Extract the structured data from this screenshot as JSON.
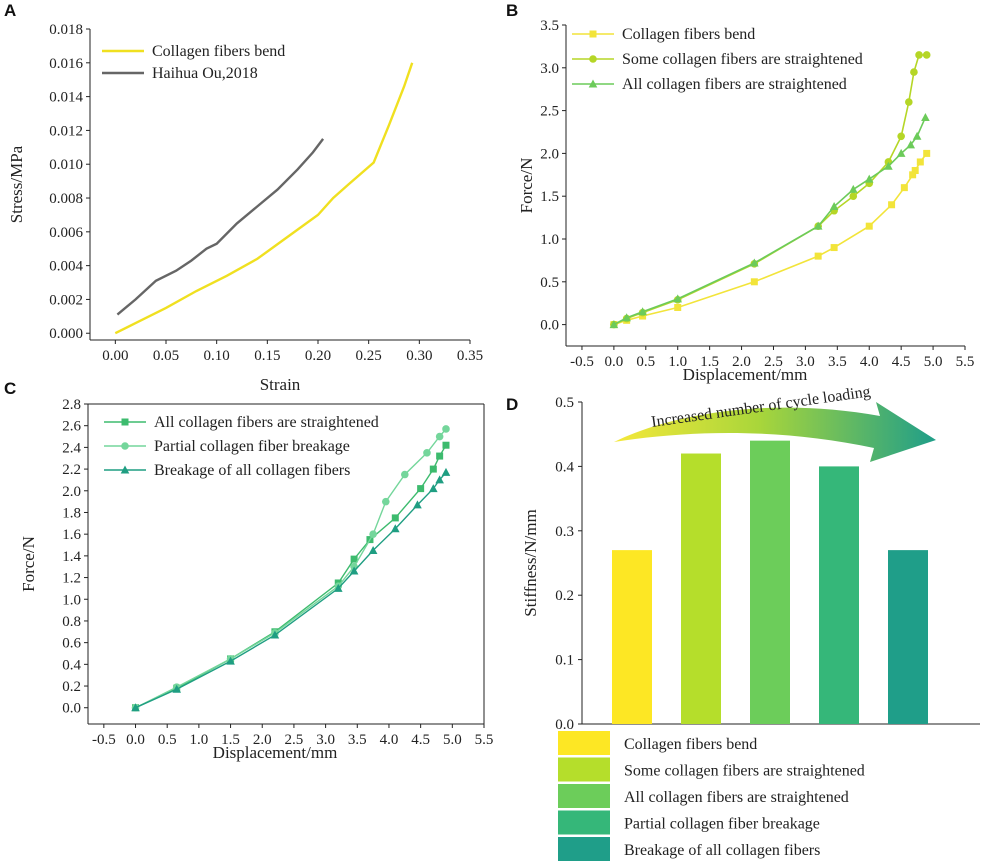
{
  "chart_data": [
    {
      "panel": "A",
      "type": "line",
      "xlabel": "Strain",
      "ylabel": "Stress/MPa",
      "xlim": [
        -0.025,
        0.35
      ],
      "ylim": [
        -0.0004,
        0.018
      ],
      "xticks": [
        "0.00",
        "0.05",
        "0.10",
        "0.15",
        "0.20",
        "0.25",
        "0.30",
        "0.35"
      ],
      "yticks": [
        "0.000",
        "0.002",
        "0.004",
        "0.006",
        "0.008",
        "0.010",
        "0.012",
        "0.014",
        "0.016",
        "0.018"
      ],
      "legend_position": "top-left",
      "series": [
        {
          "name": "Collagen fibers bend",
          "color": "#f0e020",
          "marker": "none",
          "x": [
            0,
            0.02,
            0.05,
            0.08,
            0.11,
            0.14,
            0.17,
            0.2,
            0.215,
            0.23,
            0.255,
            0.27,
            0.285,
            0.293
          ],
          "y": [
            0,
            0.0006,
            0.0015,
            0.0025,
            0.0034,
            0.0044,
            0.0057,
            0.007,
            0.008,
            0.0088,
            0.0101,
            0.0123,
            0.0146,
            0.016
          ]
        },
        {
          "name": "Haihua Ou,2018",
          "color": "#666666",
          "marker": "none",
          "x": [
            0.002,
            0.02,
            0.04,
            0.06,
            0.075,
            0.09,
            0.1,
            0.12,
            0.14,
            0.16,
            0.18,
            0.195,
            0.205
          ],
          "y": [
            0.0011,
            0.002,
            0.0031,
            0.0037,
            0.0043,
            0.005,
            0.0053,
            0.0065,
            0.0075,
            0.0085,
            0.0097,
            0.0107,
            0.0115
          ]
        }
      ]
    },
    {
      "panel": "B",
      "type": "line",
      "xlabel": "Displacement/mm",
      "ylabel": "Force/N",
      "xlim": [
        -0.75,
        5.5
      ],
      "ylim": [
        -0.25,
        3.5
      ],
      "xticks": [
        "-0.5",
        "0.0",
        "0.5",
        "1.0",
        "1.5",
        "2.0",
        "2.5",
        "3.0",
        "3.5",
        "4.0",
        "4.5",
        "5.0",
        "5.5"
      ],
      "yticks": [
        "0.0",
        "0.5",
        "1.0",
        "1.5",
        "2.0",
        "2.5",
        "3.0",
        "3.5"
      ],
      "legend_position": "top-left",
      "series": [
        {
          "name": "Collagen fibers bend",
          "color": "#f2e43a",
          "marker": "square",
          "x": [
            0,
            0.2,
            0.45,
            1.0,
            2.2,
            3.2,
            3.45,
            4.0,
            4.35,
            4.55,
            4.68,
            4.72,
            4.8,
            4.9
          ],
          "y": [
            0,
            0.05,
            0.1,
            0.2,
            0.5,
            0.8,
            0.9,
            1.15,
            1.4,
            1.6,
            1.75,
            1.8,
            1.9,
            2.0
          ]
        },
        {
          "name": "Some collagen fibers are straightened",
          "color": "#b5d626",
          "marker": "circle",
          "x": [
            0,
            0.2,
            0.45,
            1.0,
            2.2,
            3.2,
            3.45,
            3.75,
            4.0,
            4.3,
            4.5,
            4.62,
            4.7,
            4.78,
            4.9
          ],
          "y": [
            0,
            0.07,
            0.14,
            0.29,
            0.71,
            1.15,
            1.33,
            1.5,
            1.65,
            1.9,
            2.2,
            2.6,
            2.95,
            3.15,
            3.15
          ]
        },
        {
          "name": "All collagen fibers are straightened",
          "color": "#6ccb5a",
          "marker": "triangle",
          "x": [
            0,
            0.2,
            0.45,
            1.0,
            2.2,
            3.2,
            3.45,
            3.75,
            4.0,
            4.3,
            4.5,
            4.65,
            4.75,
            4.88
          ],
          "y": [
            0,
            0.08,
            0.15,
            0.3,
            0.72,
            1.15,
            1.38,
            1.58,
            1.7,
            1.85,
            2.0,
            2.1,
            2.2,
            2.42
          ]
        }
      ]
    },
    {
      "panel": "C",
      "type": "line",
      "xlabel": "Displacement/mm",
      "ylabel": "Force/N",
      "xlim": [
        -0.75,
        5.5
      ],
      "ylim": [
        -0.15,
        2.8
      ],
      "xticks": [
        "-0.5",
        "0.0",
        "0.5",
        "1.0",
        "1.5",
        "2.0",
        "2.5",
        "3.0",
        "3.5",
        "4.0",
        "4.5",
        "5.0",
        "5.5"
      ],
      "yticks": [
        "0.0",
        "0.2",
        "0.4",
        "0.6",
        "0.8",
        "1.0",
        "1.2",
        "1.4",
        "1.6",
        "1.8",
        "2.0",
        "2.2",
        "2.4",
        "2.6",
        "2.8"
      ],
      "legend_position": "top-left",
      "series": [
        {
          "name": "All collagen fibers are straightened",
          "color": "#3dbb6e",
          "marker": "square",
          "x": [
            0,
            0.65,
            1.5,
            2.2,
            3.2,
            3.45,
            3.7,
            4.1,
            4.5,
            4.7,
            4.8,
            4.9
          ],
          "y": [
            0,
            0.18,
            0.45,
            0.7,
            1.15,
            1.37,
            1.55,
            1.75,
            2.02,
            2.2,
            2.32,
            2.42
          ]
        },
        {
          "name": "Partial collagen fiber breakage",
          "color": "#74d69b",
          "marker": "circle",
          "x": [
            0,
            0.65,
            1.5,
            2.2,
            3.2,
            3.45,
            3.75,
            3.95,
            4.25,
            4.6,
            4.8,
            4.9
          ],
          "y": [
            0,
            0.19,
            0.45,
            0.69,
            1.12,
            1.3,
            1.6,
            1.9,
            2.15,
            2.35,
            2.5,
            2.57
          ]
        },
        {
          "name": "Breakage of all collagen fibers",
          "color": "#1f9e82",
          "marker": "triangle",
          "x": [
            0,
            0.65,
            1.5,
            2.2,
            3.2,
            3.45,
            3.75,
            4.1,
            4.45,
            4.7,
            4.8,
            4.9
          ],
          "y": [
            0,
            0.17,
            0.43,
            0.67,
            1.1,
            1.26,
            1.45,
            1.65,
            1.87,
            2.02,
            2.1,
            2.17
          ]
        }
      ]
    },
    {
      "panel": "D",
      "type": "bar",
      "ylabel": "Stiffness/N/mm",
      "ylim": [
        0,
        0.5
      ],
      "yticks": [
        "0.0",
        "0.1",
        "0.2",
        "0.3",
        "0.4",
        "0.5"
      ],
      "annotation": "Increased number of  cycle loading",
      "categories": [
        "Collagen fibers bend",
        "Some collagen fibers are straightened",
        "All collagen fibers are straightened",
        "Partial collagen fiber breakage",
        "Breakage of all collagen fibers"
      ],
      "values": [
        0.27,
        0.42,
        0.44,
        0.4,
        0.27
      ],
      "colors": [
        "#fde724",
        "#b5de2b",
        "#6ccd5a",
        "#35b779",
        "#1f9e89"
      ],
      "legend_position": "bottom"
    }
  ]
}
